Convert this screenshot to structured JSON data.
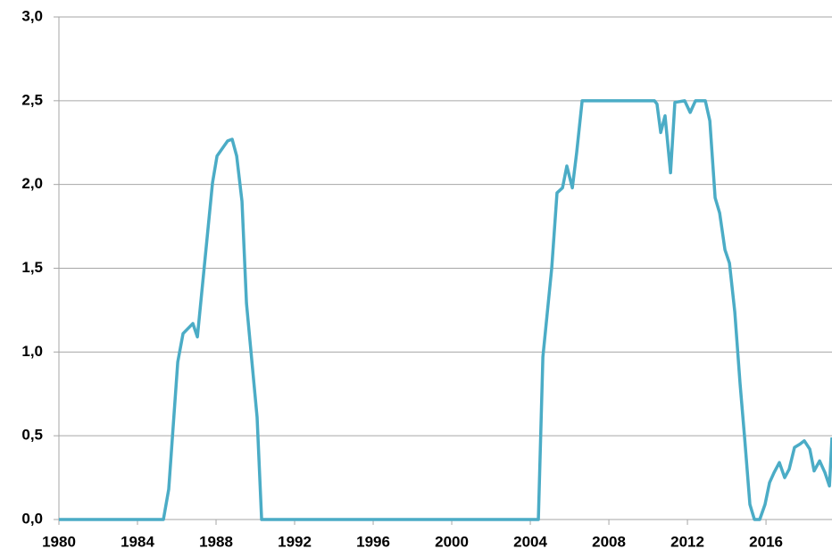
{
  "chart_data": {
    "type": "line",
    "x": [
      1980,
      1985.32,
      1985.59,
      1986.05,
      1986.32,
      1986.82,
      1987.05,
      1987.82,
      1988.05,
      1988.59,
      1988.82,
      1989.05,
      1989.32,
      1989.55,
      1990.09,
      1990.32,
      2004.41,
      2004.64,
      2005.09,
      2005.36,
      2005.64,
      2005.86,
      2006.14,
      2006.36,
      2006.64,
      2010.32,
      2010.45,
      2010.64,
      2010.86,
      2011.14,
      2011.36,
      2011.86,
      2012.14,
      2012.41,
      2012.91,
      2013.14,
      2013.41,
      2013.64,
      2013.91,
      2014.14,
      2014.41,
      2014.68,
      2014.91,
      2015.18,
      2015.41,
      2015.68,
      2015.95,
      2016.18,
      2016.41,
      2016.68,
      2016.95,
      2017.18,
      2017.45,
      2017.73,
      2017.95,
      2018.23,
      2018.45,
      2018.73,
      2019.0,
      2019.23,
      2019.36
    ],
    "series": [
      {
        "color": "#4bacc6",
        "values": [
          0,
          0,
          0.18,
          0.94,
          1.11,
          1.17,
          1.09,
          2.01,
          2.17,
          2.26,
          2.27,
          2.17,
          1.9,
          1.29,
          0.61,
          0,
          0,
          0.97,
          1.5,
          1.95,
          1.98,
          2.11,
          1.98,
          2.19,
          2.5,
          2.5,
          2.48,
          2.31,
          2.41,
          2.07,
          2.49,
          2.5,
          2.43,
          2.5,
          2.5,
          2.38,
          1.92,
          1.83,
          1.61,
          1.53,
          1.24,
          0.81,
          0.49,
          0.09,
          0,
          0,
          0.09,
          0.22,
          0.28,
          0.34,
          0.25,
          0.3,
          0.43,
          0.45,
          0.47,
          0.42,
          0.29,
          0.35,
          0.28,
          0.2,
          0.49
        ]
      }
    ],
    "xlim": [
      1980,
      2019.36
    ],
    "xticks": [
      1980,
      1984,
      1988,
      1992,
      1996,
      2000,
      2004,
      2008,
      2012,
      2016
    ],
    "ylim": [
      0,
      3
    ],
    "yticks": [
      {
        "value": 0,
        "label": "0,0"
      },
      {
        "value": 0.5,
        "label": "0,5"
      },
      {
        "value": 1,
        "label": "1,0"
      },
      {
        "value": 1.5,
        "label": "1,5"
      },
      {
        "value": 2,
        "label": "2,0"
      },
      {
        "value": 2.5,
        "label": "2,5"
      },
      {
        "value": 3,
        "label": "3,0"
      }
    ],
    "grid": true
  }
}
